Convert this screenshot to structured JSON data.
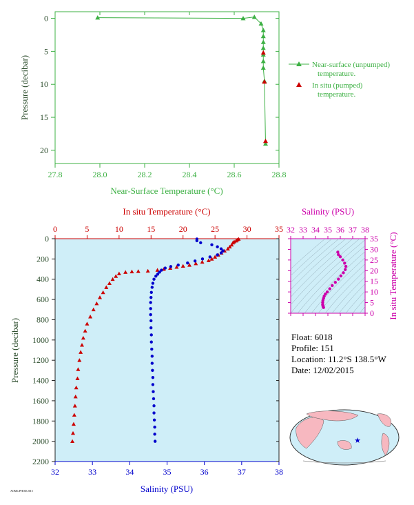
{
  "colors": {
    "green": "#3cb043",
    "red": "#cc0000",
    "blue": "#0000cc",
    "magenta": "#cc00aa",
    "plot_bg": "#cfeef8",
    "axis_label_dark": "#2f4f2f"
  },
  "chart_data": [
    {
      "type": "line",
      "xlabel": "Near-Surface Temperature (°C)",
      "ylabel": "Pressure (decibar)",
      "xlim": [
        27.8,
        28.8
      ],
      "ylim": [
        22,
        -1
      ],
      "xticks": [
        "27.8",
        "28.0",
        "28.2",
        "28.4",
        "28.6",
        "28.8"
      ],
      "yticks": [
        "0",
        "5",
        "10",
        "15",
        "20"
      ],
      "legend_position": "right",
      "series": [
        {
          "name": "Near-surface (unpumped) temperature.",
          "marker": "triangle",
          "color": "#3cb043",
          "connected": true,
          "points": [
            [
              27.99,
              -0.1
            ],
            [
              28.64,
              0.0
            ],
            [
              28.69,
              -0.2
            ],
            [
              28.72,
              0.8
            ],
            [
              28.73,
              1.8
            ],
            [
              28.73,
              2.7
            ],
            [
              28.73,
              3.6
            ],
            [
              28.73,
              4.5
            ],
            [
              28.73,
              5.5
            ],
            [
              28.73,
              6.5
            ],
            [
              28.73,
              7.5
            ],
            [
              28.735,
              9.5
            ],
            [
              28.74,
              19.0
            ]
          ]
        },
        {
          "name": "In situ (pumped) temperature.",
          "marker": "triangle",
          "color": "#cc0000",
          "connected": false,
          "points": [
            [
              28.73,
              5.2
            ],
            [
              28.735,
              9.6
            ],
            [
              28.74,
              18.6
            ]
          ]
        }
      ]
    },
    {
      "type": "line",
      "xlabel_top": "In situ Temperature (°C)",
      "xlabel_bottom": "Salinity (PSU)",
      "ylabel": "Pressure (decibar)",
      "temp_lim": [
        0,
        35
      ],
      "sal_lim": [
        32,
        38
      ],
      "ylim": [
        0,
        2200
      ],
      "temp_ticks": [
        "0",
        "5",
        "10",
        "15",
        "20",
        "25",
        "30",
        "35"
      ],
      "sal_ticks": [
        "32",
        "33",
        "34",
        "35",
        "36",
        "37",
        "38"
      ],
      "yticks": [
        "0",
        "200",
        "400",
        "600",
        "800",
        "1000",
        "1200",
        "1400",
        "1600",
        "1800",
        "2000",
        "2200"
      ],
      "temperature_profile": {
        "color": "#cc0000",
        "marker": "triangle",
        "points": [
          [
            28.7,
            3
          ],
          [
            28.5,
            10
          ],
          [
            28.3,
            20
          ],
          [
            28.0,
            30
          ],
          [
            27.8,
            40
          ],
          [
            27.6,
            60
          ],
          [
            27.3,
            80
          ],
          [
            27.0,
            100
          ],
          [
            26.5,
            120
          ],
          [
            26.0,
            140
          ],
          [
            25.5,
            160
          ],
          [
            25.0,
            180
          ],
          [
            24.5,
            200
          ],
          [
            24.0,
            215
          ],
          [
            23.0,
            230
          ],
          [
            22.0,
            245
          ],
          [
            21.0,
            260
          ],
          [
            20.0,
            270
          ],
          [
            19.0,
            280
          ],
          [
            18.0,
            290
          ],
          [
            17.0,
            300
          ],
          [
            16.0,
            310
          ],
          [
            14.5,
            318
          ],
          [
            13.0,
            322
          ],
          [
            12.0,
            325
          ],
          [
            11.0,
            330
          ],
          [
            10.0,
            345
          ],
          [
            9.5,
            370
          ],
          [
            9.0,
            400
          ],
          [
            8.5,
            440
          ],
          [
            8.0,
            480
          ],
          [
            7.5,
            530
          ],
          [
            7.0,
            580
          ],
          [
            6.5,
            640
          ],
          [
            6.0,
            700
          ],
          [
            5.5,
            770
          ],
          [
            5.0,
            840
          ],
          [
            4.7,
            910
          ],
          [
            4.4,
            980
          ],
          [
            4.2,
            1050
          ],
          [
            4.0,
            1120
          ],
          [
            3.8,
            1200
          ],
          [
            3.6,
            1290
          ],
          [
            3.5,
            1380
          ],
          [
            3.3,
            1470
          ],
          [
            3.2,
            1560
          ],
          [
            3.1,
            1650
          ],
          [
            3.0,
            1740
          ],
          [
            2.9,
            1830
          ],
          [
            2.8,
            1920
          ],
          [
            2.7,
            2000
          ]
        ]
      },
      "salinity_profile": {
        "color": "#0000cc",
        "marker": "dot",
        "points": [
          [
            35.8,
            3
          ],
          [
            35.8,
            20
          ],
          [
            35.9,
            40
          ],
          [
            36.2,
            60
          ],
          [
            36.35,
            80
          ],
          [
            36.45,
            100
          ],
          [
            36.5,
            120
          ],
          [
            36.45,
            140
          ],
          [
            36.35,
            160
          ],
          [
            36.15,
            180
          ],
          [
            35.95,
            200
          ],
          [
            35.75,
            220
          ],
          [
            35.55,
            240
          ],
          [
            35.3,
            260
          ],
          [
            35.1,
            275
          ],
          [
            34.95,
            290
          ],
          [
            34.85,
            310
          ],
          [
            34.8,
            330
          ],
          [
            34.75,
            350
          ],
          [
            34.7,
            370
          ],
          [
            34.65,
            400
          ],
          [
            34.62,
            440
          ],
          [
            34.6,
            480
          ],
          [
            34.58,
            530
          ],
          [
            34.57,
            580
          ],
          [
            34.56,
            630
          ],
          [
            34.56,
            690
          ],
          [
            34.56,
            750
          ],
          [
            34.57,
            810
          ],
          [
            34.57,
            880
          ],
          [
            34.58,
            950
          ],
          [
            34.58,
            1020
          ],
          [
            34.59,
            1090
          ],
          [
            34.6,
            1160
          ],
          [
            34.6,
            1230
          ],
          [
            34.61,
            1300
          ],
          [
            34.62,
            1370
          ],
          [
            34.62,
            1440
          ],
          [
            34.63,
            1510
          ],
          [
            34.64,
            1580
          ],
          [
            34.65,
            1650
          ],
          [
            34.65,
            1720
          ],
          [
            34.66,
            1790
          ],
          [
            34.67,
            1860
          ],
          [
            34.67,
            1930
          ],
          [
            34.68,
            2000
          ]
        ]
      }
    },
    {
      "type": "scatter",
      "xlabel": "Salinity (PSU)",
      "ylabel": "In situ Temperature (°C)",
      "xlim": [
        32,
        38
      ],
      "ylim": [
        0,
        35
      ],
      "xticks": [
        "32",
        "33",
        "34",
        "35",
        "36",
        "37",
        "38"
      ],
      "yticks": [
        "0",
        "5",
        "10",
        "15",
        "20",
        "25",
        "30",
        "35"
      ],
      "color": "#cc00aa",
      "points": [
        [
          35.8,
          28.7
        ],
        [
          35.85,
          27.5
        ],
        [
          36.0,
          26.5
        ],
        [
          36.2,
          25.0
        ],
        [
          36.35,
          23.5
        ],
        [
          36.45,
          22.0
        ],
        [
          36.4,
          20.5
        ],
        [
          36.25,
          19.0
        ],
        [
          36.05,
          17.5
        ],
        [
          35.85,
          16.0
        ],
        [
          35.6,
          14.5
        ],
        [
          35.35,
          13.0
        ],
        [
          35.15,
          11.5
        ],
        [
          34.95,
          10.0
        ],
        [
          34.8,
          9.0
        ],
        [
          34.7,
          8.0
        ],
        [
          34.65,
          7.0
        ],
        [
          34.6,
          6.0
        ],
        [
          34.58,
          5.0
        ],
        [
          34.58,
          4.0
        ],
        [
          34.6,
          3.5
        ],
        [
          34.62,
          3.0
        ],
        [
          34.65,
          2.7
        ]
      ]
    }
  ],
  "float_info": {
    "float": "Float:  6018",
    "profile": "Profile:  151",
    "location": "Location:  11.2°S  138.5°W",
    "date": "Date:  12/02/2015"
  },
  "footer_tag": "AOML/PHOD 2015"
}
